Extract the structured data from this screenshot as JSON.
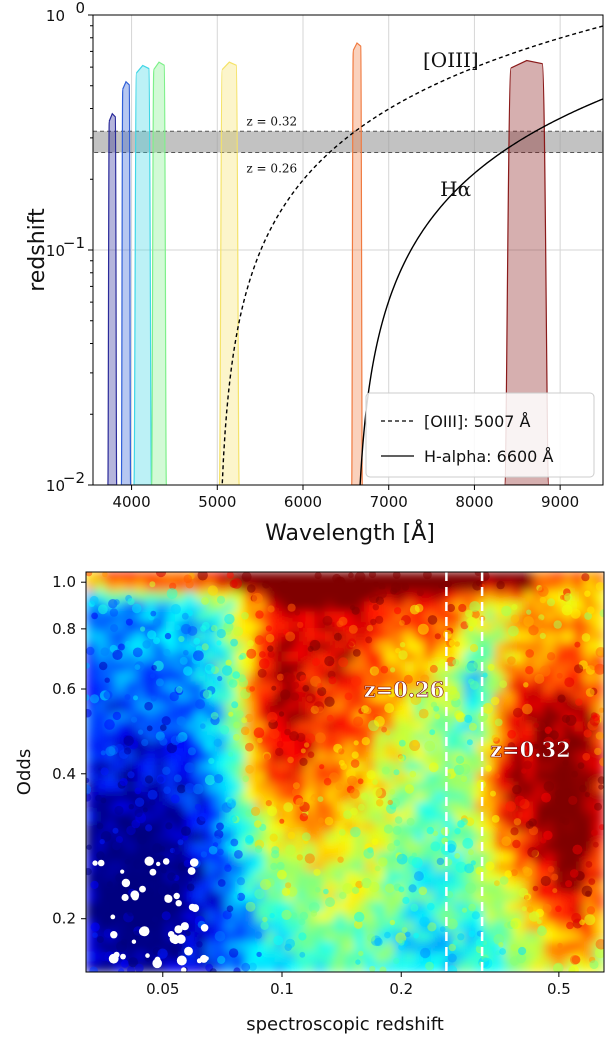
{
  "chart_data": [
    {
      "type": "line",
      "xlabel": "Wavelength [Å]",
      "ylabel": "redshift",
      "xlim": [
        3550,
        9500
      ],
      "ylim": [
        0.01,
        1.0
      ],
      "yscale": "log",
      "grid": true,
      "xticks": [
        {
          "value": 4000,
          "label": "4000"
        },
        {
          "value": 5000,
          "label": "5000"
        },
        {
          "value": 6000,
          "label": "6000"
        },
        {
          "value": 7000,
          "label": "7000"
        },
        {
          "value": 8000,
          "label": "8000"
        },
        {
          "value": 9000,
          "label": "9000"
        }
      ],
      "yticks": [
        {
          "value": 0.01,
          "base": "10",
          "exp": "−2"
        },
        {
          "value": 0.1,
          "base": "10",
          "exp": "−1"
        },
        {
          "value": 1.0,
          "base": "10",
          "exp": "0"
        }
      ],
      "series": [
        {
          "name": "[OIII]: 5007 Å",
          "rest_wavelength": 5007,
          "style": "dashed",
          "color": "#000000"
        },
        {
          "name": "H-alpha: 6600 Å",
          "rest_wavelength": 6600,
          "style": "solid",
          "color": "#000000"
        }
      ],
      "curve_labels": [
        {
          "text": "[OIII]",
          "series": 0
        },
        {
          "text": "Hα",
          "series": 1
        }
      ],
      "band": {
        "zmin": 0.26,
        "zmax": 0.32,
        "labels": [
          "z = 0.32",
          "z = 0.26"
        ]
      },
      "filters": [
        {
          "center": 3775,
          "width": 95,
          "peak": 0.38,
          "color": "#2a2a9a"
        },
        {
          "center": 3935,
          "width": 100,
          "peak": 0.52,
          "color": "#2f5fd8"
        },
        {
          "center": 4130,
          "width": 190,
          "peak": 0.61,
          "color": "#3fd6e6"
        },
        {
          "center": 4320,
          "width": 160,
          "peak": 0.63,
          "color": "#7ef08a"
        },
        {
          "center": 5140,
          "width": 215,
          "peak": 0.63,
          "color": "#f5e36a"
        },
        {
          "center": 6630,
          "width": 115,
          "peak": 0.76,
          "color": "#f07a40"
        },
        {
          "center": 8610,
          "width": 480,
          "peak": 0.64,
          "color": "#8a1a1a"
        }
      ],
      "legend": {
        "placement": "lower right",
        "entries": [
          "[OIII]: 5007 Å",
          "H-alpha: 6600 Å"
        ]
      }
    },
    {
      "type": "heatmap",
      "xlabel": "spectroscopic redshift",
      "ylabel": "Odds",
      "xscale": "log",
      "yscale": "log",
      "xlim": [
        0.032,
        0.65
      ],
      "ylim": [
        0.155,
        1.05
      ],
      "xticks": [
        {
          "value": 0.05,
          "label": "0.05"
        },
        {
          "value": 0.1,
          "label": "0.1"
        },
        {
          "value": 0.2,
          "label": "0.2"
        },
        {
          "value": 0.5,
          "label": "0.5"
        }
      ],
      "yticks": [
        {
          "value": 1.0,
          "label": "1.0"
        },
        {
          "value": 0.8,
          "label": "0.8"
        },
        {
          "value": 0.6,
          "label": "0.6"
        },
        {
          "value": 0.4,
          "label": "0.4"
        },
        {
          "value": 0.2,
          "label": "0.2"
        }
      ],
      "vlines": [
        {
          "x": 0.26,
          "label": "z=0.26",
          "style": "dashed",
          "color": "#ffffff"
        },
        {
          "x": 0.32,
          "label": "z=0.32",
          "style": "dashed",
          "color": "#ffffff"
        }
      ],
      "colormap": "jet"
    }
  ]
}
